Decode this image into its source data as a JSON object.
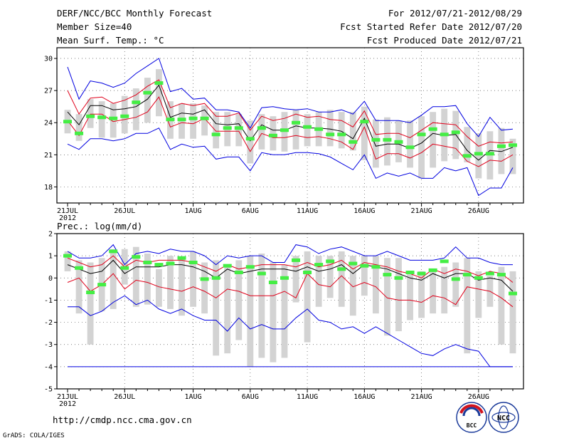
{
  "header": {
    "left": [
      "DERF/NCC/BCC Monthly Forecast",
      "Member Size=40",
      "Mean Surf. Temp.: °C"
    ],
    "right": [
      "For 2012/07/21-2012/08/29",
      "Fcst Started Refer Date 2012/07/20",
      "Fcst Produced Date 2012/07/21"
    ]
  },
  "footer": {
    "url": "http://cmdp.ncc.cma.gov.cn",
    "grads": "GrADS: COLA/IGES",
    "logo_bcc": "BCC",
    "logo_ncc": "NCC"
  },
  "colors": {
    "box": "#d3d3d3",
    "mean": "#000000",
    "spread": "#e0001a",
    "envelope": "#0000e0",
    "obs": "#44ee44",
    "frame": "#000000"
  },
  "chart_data": [
    {
      "type": "box",
      "title": "Mean Surf. Temp.: °C",
      "ylabel": "",
      "ylim": [
        16.5,
        31
      ],
      "yticks": [
        18,
        21,
        24,
        27,
        30
      ],
      "xticks": [
        {
          "day": 1,
          "label": "21JUL",
          "sub": "2012"
        },
        {
          "day": 6,
          "label": "26JUL"
        },
        {
          "day": 12,
          "label": "1AUG"
        },
        {
          "day": 17,
          "label": "6AUG"
        },
        {
          "day": 22,
          "label": "11AUG"
        },
        {
          "day": 27,
          "label": "16AUG"
        },
        {
          "day": 32,
          "label": "21AUG"
        },
        {
          "day": 37,
          "label": "26AUG"
        }
      ],
      "days": 40,
      "box_low": [
        23.0,
        22.3,
        23.5,
        22.6,
        22.6,
        23.0,
        23.3,
        24.0,
        24.6,
        22.5,
        22.5,
        22.5,
        22.8,
        21.6,
        21.8,
        21.8,
        20.2,
        21.5,
        21.4,
        21.3,
        21.5,
        21.8,
        21.8,
        21.8,
        21.6,
        21.4,
        20.5,
        19.8,
        20.0,
        20.3,
        19.8,
        18.8,
        19.8,
        20.4,
        20.6,
        20.3,
        18.8,
        18.7,
        19.2,
        19.2
      ],
      "box_high": [
        25.2,
        24.8,
        26.2,
        26.0,
        25.8,
        26.5,
        27.2,
        28.2,
        29.0,
        26.0,
        25.8,
        25.8,
        25.6,
        25.0,
        25.0,
        24.8,
        24.2,
        24.8,
        24.6,
        25.0,
        25.2,
        24.8,
        25.0,
        25.2,
        25.0,
        25.0,
        25.5,
        24.3,
        24.5,
        24.2,
        24.2,
        24.6,
        25.0,
        25.3,
        25.1,
        23.6,
        23.0,
        23.2,
        23.5,
        22.5
      ],
      "mean": [
        25.0,
        23.8,
        25.6,
        25.6,
        25.2,
        25.3,
        25.5,
        26.2,
        27.5,
        24.5,
        24.9,
        24.8,
        25.2,
        23.9,
        23.8,
        23.9,
        22.3,
        23.8,
        23.3,
        23.3,
        23.7,
        23.5,
        23.5,
        23.4,
        23.2,
        22.5,
        24.4,
        21.8,
        22.0,
        22.0,
        21.6,
        22.1,
        23.0,
        22.8,
        22.9,
        21.4,
        20.5,
        21.4,
        21.3,
        21.7
      ],
      "spread_high": [
        27.0,
        24.8,
        26.3,
        26.4,
        25.8,
        26.1,
        26.6,
        27.4,
        28.0,
        25.4,
        25.8,
        25.6,
        25.8,
        24.6,
        24.6,
        24.9,
        23.3,
        24.6,
        24.2,
        24.4,
        24.8,
        24.5,
        24.6,
        24.3,
        24.2,
        23.6,
        25.1,
        22.9,
        23.0,
        23.0,
        22.6,
        23.3,
        24.0,
        23.9,
        23.8,
        22.7,
        21.8,
        22.2,
        22.1,
        22.2
      ],
      "spread_low": [
        24.2,
        22.8,
        24.8,
        24.8,
        24.1,
        24.3,
        24.5,
        25.0,
        26.4,
        23.6,
        24.0,
        23.9,
        24.4,
        23.2,
        23.2,
        23.2,
        21.3,
        23.0,
        22.6,
        22.6,
        22.8,
        22.6,
        22.7,
        22.5,
        22.2,
        21.5,
        23.6,
        20.6,
        21.1,
        21.1,
        20.7,
        21.2,
        22.0,
        21.8,
        21.6,
        20.4,
        19.9,
        20.5,
        20.4,
        21.0
      ],
      "envelope_high": [
        29.2,
        26.2,
        27.9,
        27.7,
        27.3,
        27.7,
        28.6,
        29.3,
        30.0,
        26.9,
        27.2,
        26.2,
        26.3,
        25.2,
        25.2,
        25.0,
        23.5,
        25.4,
        25.5,
        25.3,
        25.2,
        25.3,
        25.0,
        25.0,
        25.2,
        24.8,
        26.0,
        24.2,
        24.2,
        24.2,
        24.0,
        24.7,
        25.5,
        25.5,
        25.6,
        23.9,
        22.7,
        24.5,
        23.3,
        23.4
      ],
      "envelope_low": [
        22.0,
        21.5,
        22.5,
        22.5,
        22.3,
        22.5,
        23.0,
        23.0,
        23.5,
        21.5,
        22.0,
        21.7,
        21.8,
        20.6,
        20.8,
        20.8,
        19.5,
        21.2,
        21.0,
        21.0,
        21.2,
        21.2,
        21.1,
        20.8,
        20.2,
        19.6,
        21.0,
        18.8,
        19.3,
        19.0,
        19.3,
        18.8,
        18.8,
        19.8,
        19.5,
        19.8,
        17.2,
        17.9,
        17.9,
        19.8
      ],
      "obs": [
        24.1,
        23.0,
        24.6,
        24.5,
        24.4,
        24.6,
        25.9,
        26.8,
        27.7,
        24.3,
        24.3,
        24.4,
        24.4,
        22.9,
        23.5,
        23.5,
        22.5,
        23.5,
        22.8,
        23.3,
        24.0,
        23.6,
        23.4,
        22.9,
        22.9,
        22.2,
        24.1,
        22.4,
        22.4,
        22.2,
        21.7,
        22.9,
        23.4,
        22.9,
        23.1,
        20.9,
        21.1,
        21.1,
        21.8,
        21.9
      ]
    },
    {
      "type": "box",
      "title": "Prec.: log(mm/d)",
      "ylabel": "",
      "ylim": [
        -5,
        2
      ],
      "yticks": [
        -5,
        -4,
        -3,
        -2,
        -1,
        0,
        1,
        2
      ],
      "xticks": [
        {
          "day": 1,
          "label": "21JUL",
          "sub": "2012"
        },
        {
          "day": 6,
          "label": "26JUL"
        },
        {
          "day": 12,
          "label": "1AUG"
        },
        {
          "day": 17,
          "label": "6AUG"
        },
        {
          "day": 22,
          "label": "11AUG"
        },
        {
          "day": 27,
          "label": "16AUG"
        },
        {
          "day": 32,
          "label": "21AUG"
        },
        {
          "day": 37,
          "label": "26AUG"
        }
      ],
      "days": 40,
      "box_low": [
        0.3,
        -1.6,
        -3.0,
        -1.5,
        -1.4,
        -0.3,
        -1.3,
        -1.2,
        -1.3,
        -1.4,
        -1.7,
        -1.3,
        -1.6,
        -3.5,
        -3.4,
        -2.8,
        -4.0,
        -3.6,
        -3.8,
        -3.6,
        -1.1,
        -2.9,
        -1.3,
        -0.9,
        -1.3,
        -1.7,
        -0.8,
        -1.6,
        -2.6,
        -2.4,
        -1.9,
        -1.8,
        -1.6,
        -1.6,
        -1.3,
        -3.4,
        -1.8,
        -1.3,
        -3.0,
        -3.4
      ],
      "box_high": [
        1.2,
        0.8,
        0.7,
        0.9,
        1.3,
        1.3,
        1.4,
        1.1,
        0.4,
        1.0,
        0.9,
        1.2,
        0.7,
        0.8,
        0.6,
        0.8,
        1.0,
        1.1,
        0.7,
        0.6,
        1.0,
        1.2,
        1.0,
        1.0,
        1.2,
        1.0,
        1.0,
        1.0,
        0.9,
        0.9,
        0.3,
        0.3,
        0.3,
        0.5,
        0.7,
        0.9,
        0.3,
        0.1,
        0.5,
        0.3
      ],
      "mean": [
        0.6,
        0.4,
        0.2,
        0.3,
        0.8,
        0.2,
        0.5,
        0.5,
        0.5,
        0.6,
        0.6,
        0.5,
        0.3,
        0.0,
        0.4,
        0.2,
        0.3,
        0.4,
        0.4,
        0.4,
        0.3,
        0.5,
        0.3,
        0.4,
        0.6,
        0.2,
        0.6,
        0.5,
        0.4,
        0.2,
        0.0,
        -0.1,
        0.2,
        0.0,
        0.2,
        0.2,
        -0.1,
        0.0,
        -0.1,
        -0.6
      ],
      "spread_high": [
        0.9,
        0.7,
        0.5,
        0.6,
        1.0,
        0.5,
        0.8,
        0.7,
        0.8,
        0.8,
        0.8,
        0.7,
        0.5,
        0.3,
        0.6,
        0.4,
        0.5,
        0.6,
        0.6,
        0.6,
        0.5,
        0.7,
        0.5,
        0.6,
        0.8,
        0.4,
        0.7,
        0.6,
        0.5,
        0.3,
        0.2,
        0.0,
        0.4,
        0.2,
        0.4,
        0.3,
        0.1,
        0.3,
        0.2,
        -0.2
      ],
      "spread_low": [
        -0.2,
        0.0,
        -0.6,
        -0.3,
        0.2,
        -0.5,
        -0.1,
        -0.2,
        -0.4,
        -0.5,
        -0.6,
        -0.4,
        -0.6,
        -0.9,
        -0.5,
        -0.6,
        -0.8,
        -0.8,
        -0.8,
        -0.6,
        -0.9,
        0.2,
        -0.3,
        -0.4,
        0.1,
        -0.4,
        -0.2,
        -0.4,
        -0.9,
        -1.0,
        -1.0,
        -1.1,
        -0.8,
        -0.9,
        -1.2,
        -0.4,
        -0.5,
        -0.6,
        -0.9,
        -1.3
      ],
      "envelope_high": [
        1.2,
        0.9,
        0.9,
        1.0,
        1.5,
        0.6,
        1.1,
        1.2,
        1.1,
        1.3,
        1.2,
        1.2,
        1.0,
        0.6,
        1.0,
        0.9,
        1.0,
        1.0,
        0.7,
        0.7,
        1.5,
        1.4,
        1.1,
        1.3,
        1.4,
        1.2,
        1.0,
        1.0,
        1.2,
        1.0,
        0.8,
        0.8,
        0.8,
        0.9,
        1.4,
        0.9,
        0.9,
        0.7,
        0.6,
        0.6
      ],
      "envelope_low": [
        -1.3,
        -1.3,
        -1.7,
        -1.5,
        -1.1,
        -0.8,
        -1.2,
        -1.0,
        -1.4,
        -1.6,
        -1.4,
        -1.7,
        -1.9,
        -1.9,
        -2.4,
        -1.8,
        -2.3,
        -2.1,
        -2.3,
        -2.3,
        -1.8,
        -1.4,
        -1.9,
        -2.0,
        -2.3,
        -2.2,
        -2.5,
        -2.2,
        -2.5,
        -2.8,
        -3.1,
        -3.4,
        -3.5,
        -3.2,
        -3.0,
        -3.2,
        -3.3,
        -4.0,
        -4.0,
        -4.0
      ],
      "floor": -4.0,
      "obs": [
        1.0,
        0.45,
        -0.65,
        -0.3,
        1.2,
        0.45,
        0.95,
        0.7,
        0.6,
        0.65,
        0.9,
        0.7,
        -0.05,
        0.0,
        0.55,
        0.25,
        0.5,
        0.2,
        -0.2,
        0.0,
        0.8,
        0.25,
        0.6,
        0.75,
        0.4,
        0.65,
        0.55,
        0.5,
        0.15,
        0.0,
        0.25,
        0.2,
        0.35,
        0.75,
        -0.05,
        0.15,
        0.0,
        0.2,
        0.15,
        -0.7
      ]
    }
  ]
}
